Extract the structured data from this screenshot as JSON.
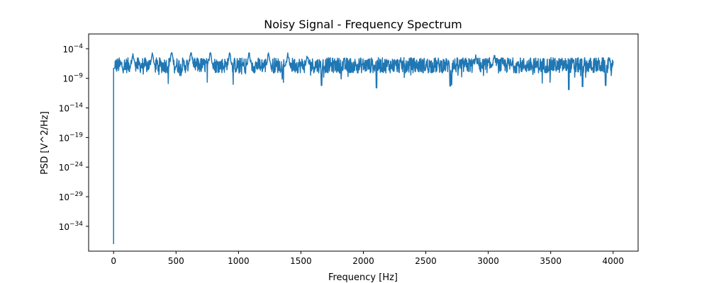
{
  "chart_data": {
    "type": "line",
    "title": "Noisy Signal - Frequency Spectrum",
    "xlabel": "Frequency [Hz]",
    "ylabel": "PSD [V^2/Hz]",
    "xlim": [
      -200,
      4200
    ],
    "ylim_log10": [
      -38.2,
      -1.5
    ],
    "yscale": "log",
    "x_ticks": [
      0,
      500,
      1000,
      1500,
      2000,
      2500,
      3000,
      3500,
      4000
    ],
    "x_tick_labels": [
      "0",
      "500",
      "1000",
      "1500",
      "2000",
      "2500",
      "3000",
      "3500",
      "4000"
    ],
    "y_tick_exponents": [
      -4,
      -9,
      -14,
      -19,
      -24,
      -29,
      -34
    ],
    "y_tick_labels": [
      "10",
      "10",
      "10",
      "10",
      "10",
      "10",
      "10"
    ],
    "y_tick_label_exponents": [
      "−4",
      "−9",
      "−14",
      "−19",
      "−24",
      "−29",
      "−34"
    ],
    "grid": false,
    "legend": "none",
    "series": [
      {
        "color": "#1f77b4",
        "x_range": [
          0,
          4000
        ],
        "dc_point": {
          "x": 0,
          "log10_psd": -37
        },
        "baseline_log10_psd": -6.8,
        "noise_band_log10": [
          -9.5,
          -5.0
        ],
        "peaks": [
          {
            "x": 155,
            "log10_psd": -4.8
          },
          {
            "x": 310,
            "log10_psd": -4.3
          },
          {
            "x": 465,
            "log10_psd": -3.5
          },
          {
            "x": 620,
            "log10_psd": -3.6
          },
          {
            "x": 775,
            "log10_psd": -3.6
          },
          {
            "x": 930,
            "log10_psd": -4.2
          },
          {
            "x": 1085,
            "log10_psd": -4.2
          },
          {
            "x": 1240,
            "log10_psd": -4.4
          },
          {
            "x": 1395,
            "log10_psd": -4.6
          },
          {
            "x": 1550,
            "log10_psd": -5.2
          },
          {
            "x": 2900,
            "log10_psd": -5.3
          },
          {
            "x": 3050,
            "log10_psd": -5.0
          }
        ],
        "dips": [
          {
            "x": 1665,
            "log10_psd": -10.2
          },
          {
            "x": 2105,
            "log10_psd": -10.6
          },
          {
            "x": 2695,
            "log10_psd": -10.3
          },
          {
            "x": 2705,
            "log10_psd": -10.1
          },
          {
            "x": 3645,
            "log10_psd": -10.9
          },
          {
            "x": 3755,
            "log10_psd": -10.4
          },
          {
            "x": 3940,
            "log10_psd": -10.2
          }
        ]
      }
    ]
  }
}
